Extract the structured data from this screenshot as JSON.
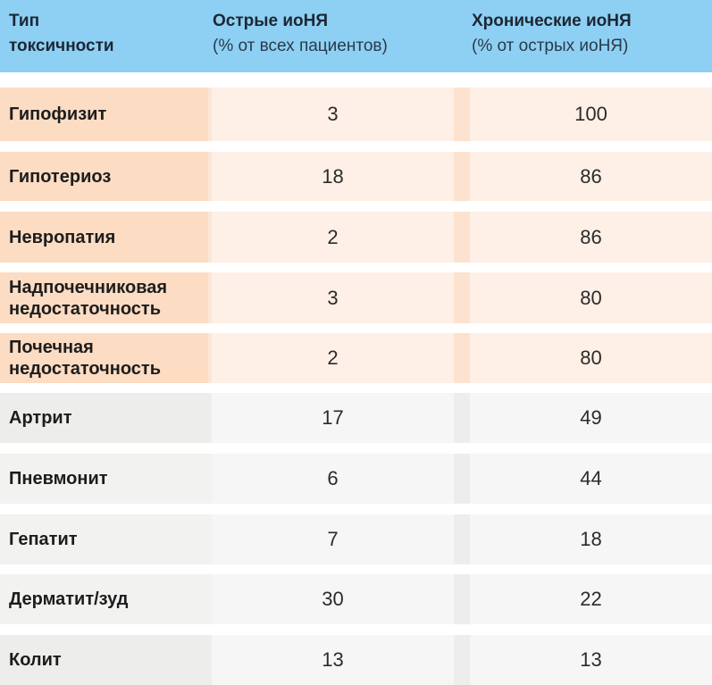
{
  "header": {
    "col1": {
      "title_line1": "Тип",
      "title_line2": "токсичности"
    },
    "col2": {
      "title": "Острые иоНЯ",
      "subtitle": "(% от всех пациентов)"
    },
    "col3": {
      "title": "Хронические иоНЯ",
      "subtitle": "(% от острых иоНЯ)"
    }
  },
  "rows": [
    {
      "label_line1": "Гипофизит",
      "label_line2": "",
      "acute": "3",
      "chronic": "100"
    },
    {
      "label_line1": "Гипотериоз",
      "label_line2": "",
      "acute": "18",
      "chronic": "86"
    },
    {
      "label_line1": "Невропатия",
      "label_line2": "",
      "acute": "2",
      "chronic": "86"
    },
    {
      "label_line1": "Надпочечниковая",
      "label_line2": "недостаточность",
      "acute": "3",
      "chronic": "80"
    },
    {
      "label_line1": "Почечная",
      "label_line2": "недостаточность",
      "acute": "2",
      "chronic": "80"
    },
    {
      "label_line1": "Артрит",
      "label_line2": "",
      "acute": "17",
      "chronic": "49"
    },
    {
      "label_line1": "Пневмонит",
      "label_line2": "",
      "acute": "6",
      "chronic": "44"
    },
    {
      "label_line1": "Гепатит",
      "label_line2": "",
      "acute": "7",
      "chronic": "18"
    },
    {
      "label_line1": "Дерматит/зуд",
      "label_line2": "",
      "acute": "30",
      "chronic": "22"
    },
    {
      "label_line1": "Колит",
      "label_line2": "",
      "acute": "13",
      "chronic": "13"
    }
  ],
  "colors": {
    "header_bg": "#8ed0f4",
    "endocrine_label_bg": "#fcdcc3",
    "endocrine_value_bg": "#fef0e6",
    "other_label_bg": "#ededec",
    "other_value_bg": "#f6f6f6"
  }
}
